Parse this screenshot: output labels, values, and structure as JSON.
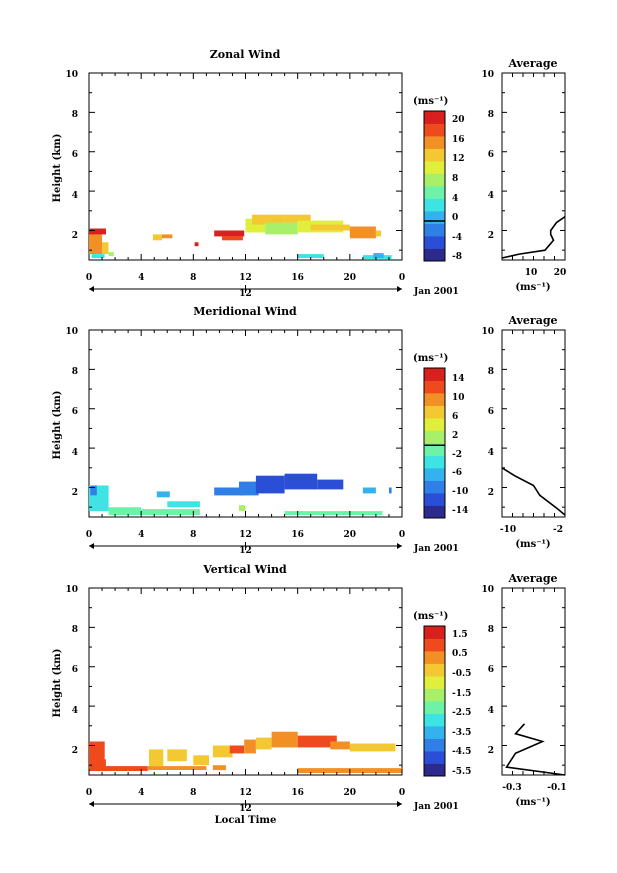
{
  "figure": {
    "colormap": [
      "#2c2a8c",
      "#2a4fd6",
      "#2f7fe6",
      "#33b2ee",
      "#3ee3e3",
      "#6df2a8",
      "#a8f06a",
      "#e0ee3c",
      "#f4c832",
      "#f29026",
      "#ee4a1e",
      "#d8201e"
    ],
    "xlabel_bottom": "Local Time",
    "day_marker": "12",
    "date_label": "Jan 2001"
  },
  "chart_data": [
    {
      "type": "heatmap",
      "title": "Zonal Wind",
      "ylabel": "Height (km)",
      "xlim": [
        0,
        24
      ],
      "ylim": [
        0.5,
        10
      ],
      "xticks": [
        "0",
        "4",
        "8",
        "12",
        "16",
        "20",
        "0"
      ],
      "yticks": [
        "2",
        "4",
        "6",
        "8",
        "10"
      ],
      "colorbar": {
        "unit": "(ms⁻¹)",
        "range": [
          -8,
          22
        ],
        "ticks": [
          "20",
          "16",
          "12",
          "8",
          "4",
          "0",
          "-4",
          "-8"
        ],
        "zero_line": 0
      },
      "cells": [
        {
          "t": [
            0.0,
            1.0
          ],
          "h": [
            0.8,
            2.1
          ],
          "v": 16
        },
        {
          "t": [
            0.0,
            1.3
          ],
          "h": [
            1.8,
            2.1
          ],
          "v": 20
        },
        {
          "t": [
            1.0,
            1.5
          ],
          "h": [
            0.8,
            1.4
          ],
          "v": 14
        },
        {
          "t": [
            1.5,
            1.9
          ],
          "h": [
            0.7,
            0.9
          ],
          "v": 8
        },
        {
          "t": [
            0.2,
            1.2
          ],
          "h": [
            0.6,
            0.8
          ],
          "v": 4
        },
        {
          "t": [
            4.9,
            5.6
          ],
          "h": [
            1.5,
            1.8
          ],
          "v": 14
        },
        {
          "t": [
            5.6,
            6.4
          ],
          "h": [
            1.6,
            1.8
          ],
          "v": 16
        },
        {
          "t": [
            8.1,
            8.4
          ],
          "h": [
            1.2,
            1.4
          ],
          "v": 20
        },
        {
          "t": [
            9.6,
            11.9
          ],
          "h": [
            1.7,
            2.0
          ],
          "v": 20
        },
        {
          "t": [
            10.2,
            11.8
          ],
          "h": [
            1.5,
            1.7
          ],
          "v": 18
        },
        {
          "t": [
            12.0,
            13.5
          ],
          "h": [
            1.9,
            2.6
          ],
          "v": 10
        },
        {
          "t": [
            12.5,
            15.0
          ],
          "h": [
            2.3,
            2.8
          ],
          "v": 14
        },
        {
          "t": [
            13.5,
            16.0
          ],
          "h": [
            1.8,
            2.4
          ],
          "v": 8
        },
        {
          "t": [
            15.0,
            17.0
          ],
          "h": [
            2.4,
            2.8
          ],
          "v": 12
        },
        {
          "t": [
            16.0,
            19.5
          ],
          "h": [
            1.9,
            2.5
          ],
          "v": 10
        },
        {
          "t": [
            17.0,
            20.0
          ],
          "h": [
            2.0,
            2.3
          ],
          "v": 14
        },
        {
          "t": [
            20.0,
            22.0
          ],
          "h": [
            1.6,
            2.2
          ],
          "v": 16
        },
        {
          "t": [
            22.0,
            22.4
          ],
          "h": [
            1.7,
            2.0
          ],
          "v": 12
        },
        {
          "t": [
            16.0,
            18.0
          ],
          "h": [
            0.6,
            0.8
          ],
          "v": 4
        },
        {
          "t": [
            21.0,
            23.2
          ],
          "h": [
            0.55,
            0.75
          ],
          "v": 4
        },
        {
          "t": [
            21.8,
            22.6
          ],
          "h": [
            0.6,
            0.85
          ],
          "v": 0
        }
      ],
      "profile": {
        "title": "Average",
        "xlim": [
          0,
          22
        ],
        "xticks": [
          "10",
          "20"
        ],
        "xlabel": "(ms⁻¹)",
        "x": [
          0,
          6,
          15,
          18,
          17,
          17,
          19,
          22
        ],
        "y": [
          0.6,
          0.8,
          1.0,
          1.5,
          1.8,
          2.0,
          2.4,
          2.7
        ]
      }
    },
    {
      "type": "heatmap",
      "title": "Meridional Wind",
      "ylabel": "Height (km)",
      "xlim": [
        0,
        24
      ],
      "ylim": [
        0.5,
        10
      ],
      "xticks": [
        "0",
        "4",
        "8",
        "12",
        "16",
        "20",
        "0"
      ],
      "yticks": [
        "2",
        "4",
        "6",
        "8",
        "10"
      ],
      "colorbar": {
        "unit": "(ms⁻¹)",
        "range": [
          -16,
          17
        ],
        "ticks": [
          "14",
          "10",
          "6",
          "2",
          "-2",
          "-6",
          "-10",
          "-14"
        ],
        "zero_line": 0
      },
      "cells": [
        {
          "t": [
            0.0,
            1.5
          ],
          "h": [
            0.8,
            2.1
          ],
          "v": -4
        },
        {
          "t": [
            0.1,
            0.6
          ],
          "h": [
            1.6,
            2.1
          ],
          "v": -9
        },
        {
          "t": [
            1.5,
            4.0
          ],
          "h": [
            0.6,
            1.0
          ],
          "v": 0
        },
        {
          "t": [
            4.0,
            8.5
          ],
          "h": [
            0.6,
            0.9
          ],
          "v": -1
        },
        {
          "t": [
            5.2,
            6.2
          ],
          "h": [
            1.5,
            1.8
          ],
          "v": -7
        },
        {
          "t": [
            6.0,
            8.5
          ],
          "h": [
            1.0,
            1.3
          ],
          "v": -4
        },
        {
          "t": [
            9.6,
            12.0
          ],
          "h": [
            1.6,
            2.0
          ],
          "v": -8
        },
        {
          "t": [
            11.5,
            13.0
          ],
          "h": [
            1.6,
            2.3
          ],
          "v": -9
        },
        {
          "t": [
            12.8,
            15.0
          ],
          "h": [
            1.7,
            2.6
          ],
          "v": -12
        },
        {
          "t": [
            15.0,
            17.5
          ],
          "h": [
            1.9,
            2.7
          ],
          "v": -13
        },
        {
          "t": [
            17.5,
            19.5
          ],
          "h": [
            1.9,
            2.4
          ],
          "v": -11
        },
        {
          "t": [
            21.0,
            22.0
          ],
          "h": [
            1.7,
            2.0
          ],
          "v": -6
        },
        {
          "t": [
            23.0,
            23.2
          ],
          "h": [
            1.7,
            2.0
          ],
          "v": -8
        },
        {
          "t": [
            15.0,
            22.5
          ],
          "h": [
            0.6,
            0.8
          ],
          "v": 0
        },
        {
          "t": [
            11.5,
            12.0
          ],
          "h": [
            0.8,
            1.1
          ],
          "v": 2
        }
      ],
      "profile": {
        "title": "Average",
        "xlim": [
          -11,
          -1
        ],
        "xticks": [
          "-10",
          "-2"
        ],
        "xlabel": "(ms⁻¹)",
        "x": [
          -1.0,
          -2.5,
          -5.0,
          -6.0,
          -9.0,
          -11.0
        ],
        "y": [
          0.6,
          1.0,
          1.6,
          2.1,
          2.6,
          3.0
        ]
      }
    },
    {
      "type": "heatmap",
      "title": "Vertical Wind",
      "ylabel": "Height (km)",
      "xlim": [
        0,
        24
      ],
      "ylim": [
        0.5,
        10
      ],
      "xticks": [
        "0",
        "4",
        "8",
        "12",
        "16",
        "20",
        "0"
      ],
      "yticks": [
        "2",
        "4",
        "6",
        "8",
        "10"
      ],
      "colorbar": {
        "unit": "(ms⁻¹)",
        "range": [
          -6.5,
          2.0
        ],
        "ticks": [
          "1.5",
          "0.5",
          "-0.5",
          "-1.5",
          "-2.5",
          "-3.5",
          "-4.5",
          "-5.5"
        ],
        "zero_line": null
      },
      "cells": [
        {
          "t": [
            0.0,
            1.2
          ],
          "h": [
            0.7,
            2.2
          ],
          "v": 0.6
        },
        {
          "t": [
            0.5,
            1.3
          ],
          "h": [
            0.7,
            1.3
          ],
          "v": 0.8
        },
        {
          "t": [
            1.2,
            4.5
          ],
          "h": [
            0.7,
            0.95
          ],
          "v": 0.7
        },
        {
          "t": [
            4.5,
            9.0
          ],
          "h": [
            0.75,
            0.95
          ],
          "v": 0.4
        },
        {
          "t": [
            4.6,
            5.7
          ],
          "h": [
            0.95,
            1.8
          ],
          "v": -0.6
        },
        {
          "t": [
            6.0,
            7.5
          ],
          "h": [
            1.2,
            1.8
          ],
          "v": -0.4
        },
        {
          "t": [
            8.0,
            9.2
          ],
          "h": [
            1.0,
            1.5
          ],
          "v": -0.7
        },
        {
          "t": [
            9.5,
            11.0
          ],
          "h": [
            1.4,
            2.0
          ],
          "v": -0.3
        },
        {
          "t": [
            10.8,
            11.9
          ],
          "h": [
            1.6,
            2.0
          ],
          "v": 1.2
        },
        {
          "t": [
            11.9,
            12.8
          ],
          "h": [
            1.6,
            2.3
          ],
          "v": 0.2
        },
        {
          "t": [
            12.8,
            14.0
          ],
          "h": [
            1.8,
            2.4
          ],
          "v": -0.6
        },
        {
          "t": [
            14.0,
            16.0
          ],
          "h": [
            1.9,
            2.7
          ],
          "v": 0.2
        },
        {
          "t": [
            16.0,
            19.0
          ],
          "h": [
            1.9,
            2.5
          ],
          "v": 0.6
        },
        {
          "t": [
            18.5,
            20.0
          ],
          "h": [
            1.8,
            2.2
          ],
          "v": 0.4
        },
        {
          "t": [
            20.0,
            23.5
          ],
          "h": [
            1.7,
            2.1
          ],
          "v": -0.8
        },
        {
          "t": [
            16.0,
            24.0
          ],
          "h": [
            0.6,
            0.85
          ],
          "v": 0.5
        },
        {
          "t": [
            9.5,
            10.5
          ],
          "h": [
            0.75,
            1.0
          ],
          "v": 0.3
        }
      ],
      "profile": {
        "title": "Average",
        "xlim": [
          -0.36,
          -0.08
        ],
        "xticks": [
          "-0.3",
          "-0.1"
        ],
        "xlabel": "(ms⁻¹)",
        "x": [
          -0.08,
          -0.34,
          -0.3,
          -0.18,
          -0.3,
          -0.26
        ],
        "y": [
          0.5,
          0.9,
          1.6,
          2.2,
          2.6,
          3.1
        ]
      }
    }
  ]
}
